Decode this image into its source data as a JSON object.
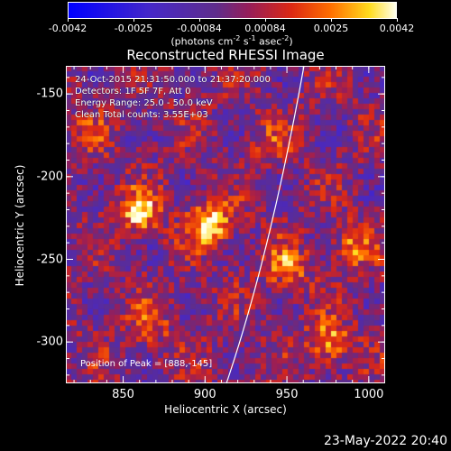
{
  "colorbar": {
    "tick_labels": [
      "-0.0042",
      "-0.0025",
      "-0.00084",
      "0.00084",
      "0.0025",
      "0.0042"
    ],
    "units_text": "(photons cm",
    "units_sup1": "-2",
    "units_mid": " s",
    "units_sup2": "-1",
    "units_mid2": " asec",
    "units_sup3": "-2",
    "units_end": ")"
  },
  "title": "Reconstructed RHESSI Image",
  "info": {
    "line1": "24-Oct-2015 21:31:50.000 to 21:37:20.000",
    "line2": "Detectors: 1F 5F 7F, Att 0",
    "line3": "Energy Range: 25.0 - 50.0 keV",
    "line4": "Clean     Total counts: 3.55E+03"
  },
  "peak_text": "Position of Peak = [888,-145]",
  "x_axis": {
    "label": "Heliocentric X (arcsec)",
    "tick_labels": [
      "850",
      "900",
      "950",
      "1000"
    ],
    "range": [
      815,
      1010
    ]
  },
  "y_axis": {
    "label": "Heliocentric Y (arcsec)",
    "tick_labels": [
      "-150",
      "-200",
      "-250",
      "-300"
    ],
    "range": [
      -325,
      -133
    ]
  },
  "footer": {
    "timestamp": "23-May-2022 20:40"
  },
  "colors": {
    "background": "#000000",
    "map_low": "#0000ff",
    "map_mid": "#5b2a8a",
    "map_high": "#ffff00",
    "limb": "#ffffff"
  },
  "chart_data": {
    "type": "heatmap",
    "title": "Reconstructed RHESSI Image",
    "xlabel": "Heliocentric X (arcsec)",
    "ylabel": "Heliocentric Y (arcsec)",
    "xlim": [
      815,
      1010
    ],
    "ylim": [
      -325,
      -133
    ],
    "clim": [
      -0.0042,
      0.0042
    ],
    "colorbar_label": "(photons cm^-2 s^-1 asec^-2)",
    "peak": [
      888,
      -145
    ],
    "sources": [
      {
        "x": 860,
        "y": -222,
        "level": 0.0038
      },
      {
        "x": 903,
        "y": -228,
        "level": 0.004
      },
      {
        "x": 866,
        "y": -290,
        "level": 0.0018
      },
      {
        "x": 950,
        "y": -255,
        "level": 0.0025
      },
      {
        "x": 976,
        "y": -300,
        "level": 0.003
      },
      {
        "x": 990,
        "y": -242,
        "level": 0.0022
      },
      {
        "x": 940,
        "y": -180,
        "level": 0.0014
      },
      {
        "x": 830,
        "y": -175,
        "level": 0.0012
      }
    ]
  }
}
